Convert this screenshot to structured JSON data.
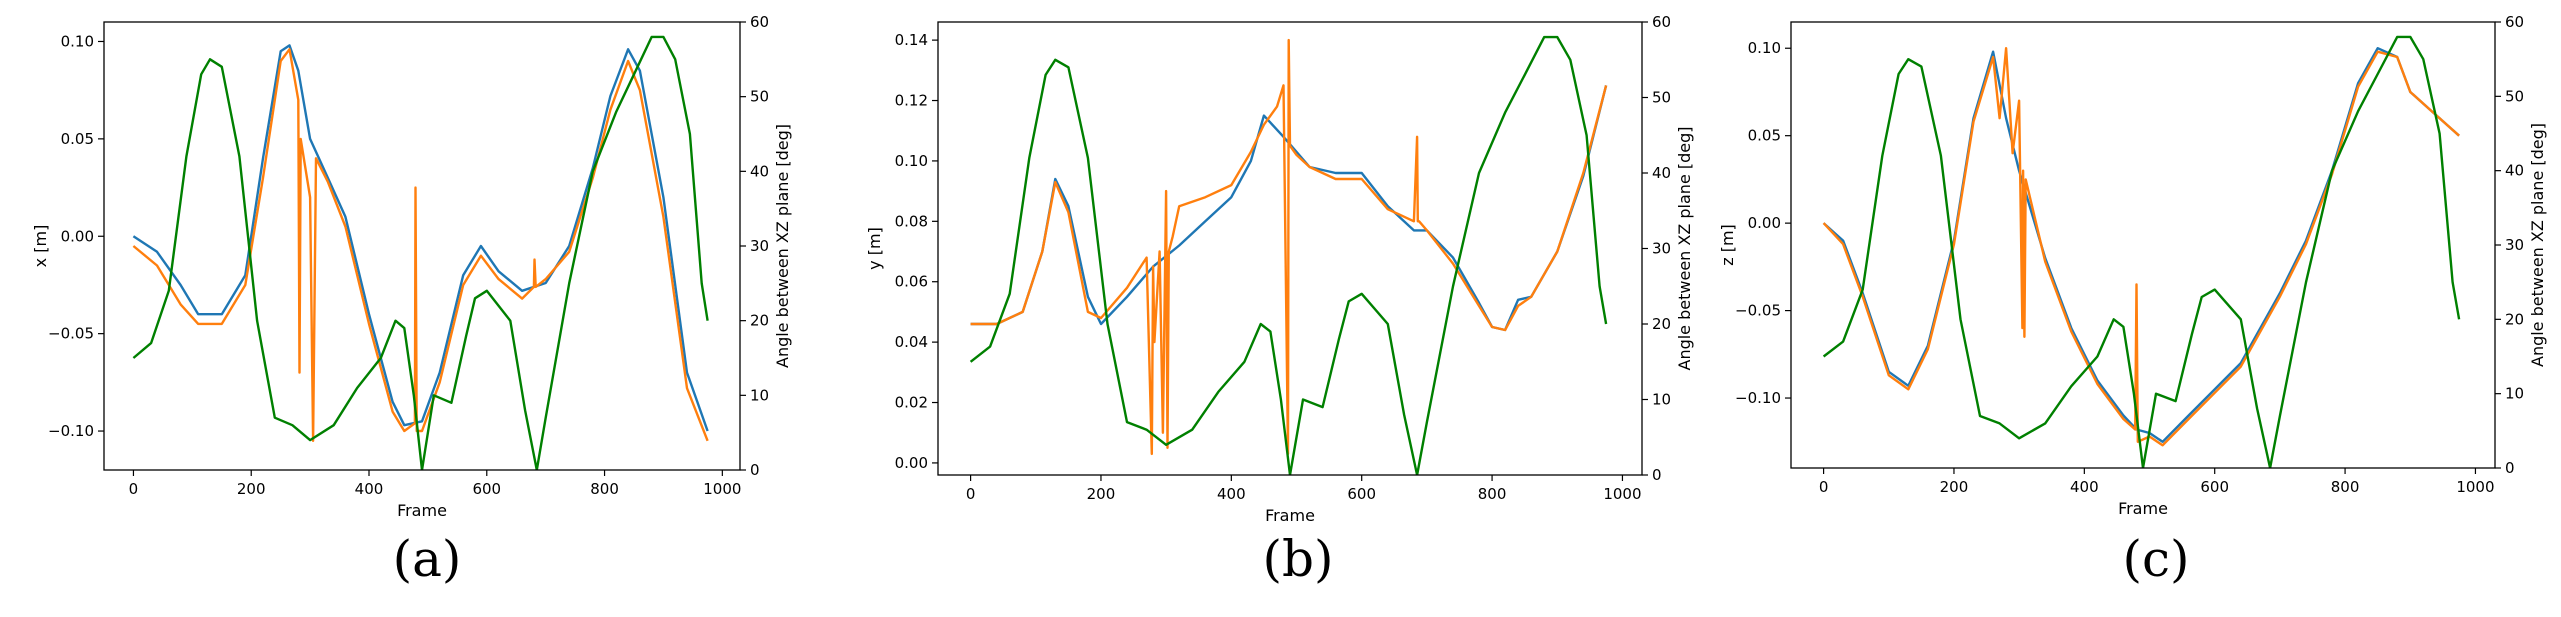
{
  "figure": {
    "panels": [
      {
        "caption": "(a)",
        "xlabel": "Frame",
        "ylabel": "x [m]",
        "y2label": "Angle between XZ plane [deg]",
        "yticks": [
          "0.10",
          "0.05",
          "0.00",
          "−0.05",
          "−0.10"
        ],
        "xticks": [
          "0",
          "200",
          "400",
          "600",
          "800",
          "1000"
        ],
        "y2ticks": [
          "60",
          "50",
          "40",
          "30",
          "20",
          "10",
          "0"
        ]
      },
      {
        "caption": "(b)",
        "xlabel": "Frame",
        "ylabel": "y [m]",
        "y2label": "Angle between XZ plane [deg]",
        "yticks": [
          "0.14",
          "0.12",
          "0.10",
          "0.08",
          "0.06",
          "0.04",
          "0.02",
          "0.00"
        ],
        "xticks": [
          "0",
          "200",
          "400",
          "600",
          "800",
          "1000"
        ],
        "y2ticks": [
          "60",
          "50",
          "40",
          "30",
          "20",
          "10",
          "0"
        ]
      },
      {
        "caption": "(c)",
        "xlabel": "Frame",
        "ylabel": "z [m]",
        "y2label": "Angle between XZ plane [deg]",
        "yticks": [
          "0.10",
          "0.05",
          "0.00",
          "−0.05",
          "−0.10"
        ],
        "xticks": [
          "0",
          "200",
          "400",
          "600",
          "800",
          "1000"
        ],
        "y2ticks": [
          "60",
          "50",
          "40",
          "30",
          "20",
          "10",
          "0"
        ]
      }
    ]
  },
  "chart_data": [
    {
      "type": "line",
      "xlabel": "Frame",
      "ylabel": "x [m]",
      "y2label": "Angle between XZ plane [deg]",
      "xlim": [
        -50,
        1030
      ],
      "ylim": [
        -0.12,
        0.11
      ],
      "y2lim": [
        0,
        60
      ],
      "xticks": [
        0,
        200,
        400,
        600,
        800,
        1000
      ],
      "yticks": [
        0.1,
        0.05,
        0.0,
        -0.05,
        -0.1
      ],
      "y2ticks": [
        60,
        50,
        40,
        30,
        20,
        10,
        0
      ],
      "series": [
        {
          "color": "#1f77b4",
          "axis": "left",
          "x": [
            0,
            40,
            80,
            110,
            150,
            190,
            220,
            250,
            265,
            280,
            300,
            330,
            360,
            400,
            440,
            460,
            490,
            520,
            560,
            590,
            620,
            660,
            700,
            740,
            780,
            810,
            840,
            860,
            900,
            940,
            975
          ],
          "y": [
            0.0,
            -0.008,
            -0.025,
            -0.04,
            -0.04,
            -0.02,
            0.04,
            0.095,
            0.098,
            0.085,
            0.05,
            0.03,
            0.01,
            -0.04,
            -0.085,
            -0.097,
            -0.095,
            -0.07,
            -0.02,
            -0.005,
            -0.018,
            -0.028,
            -0.024,
            -0.005,
            0.035,
            0.072,
            0.096,
            0.085,
            0.02,
            -0.07,
            -0.1
          ]
        },
        {
          "color": "#ff7f0e",
          "axis": "left",
          "x": [
            0,
            40,
            80,
            110,
            150,
            190,
            220,
            250,
            265,
            280,
            282,
            284,
            300,
            305,
            310,
            330,
            360,
            400,
            440,
            460,
            478,
            479,
            481,
            490,
            520,
            560,
            590,
            620,
            660,
            680,
            681,
            683,
            700,
            740,
            780,
            810,
            840,
            860,
            900,
            940,
            975
          ],
          "y": [
            -0.005,
            -0.015,
            -0.035,
            -0.045,
            -0.045,
            -0.025,
            0.03,
            0.09,
            0.096,
            0.07,
            -0.07,
            0.05,
            0.02,
            -0.105,
            0.04,
            0.028,
            0.005,
            -0.045,
            -0.09,
            -0.1,
            -0.096,
            0.025,
            -0.1,
            -0.1,
            -0.075,
            -0.025,
            -0.01,
            -0.022,
            -0.032,
            -0.026,
            -0.012,
            -0.026,
            -0.022,
            -0.008,
            0.03,
            0.065,
            0.09,
            0.075,
            0.01,
            -0.078,
            -0.105
          ]
        },
        {
          "color": "#008000",
          "axis": "right",
          "x": [
            0,
            30,
            60,
            90,
            115,
            130,
            150,
            180,
            210,
            240,
            270,
            300,
            340,
            380,
            420,
            445,
            460,
            476,
            490,
            510,
            540,
            565,
            580,
            600,
            640,
            665,
            685,
            700,
            740,
            780,
            820,
            850,
            880,
            900,
            920,
            945,
            965,
            975
          ],
          "y": [
            15,
            17,
            24,
            42,
            53,
            55,
            54,
            42,
            20,
            7,
            6,
            4,
            6,
            11,
            15,
            20,
            19,
            10,
            0,
            10,
            9,
            18,
            23,
            24,
            20,
            8,
            0,
            7,
            25,
            40,
            48,
            53,
            58,
            58,
            55,
            45,
            25,
            20
          ]
        }
      ]
    },
    {
      "type": "line",
      "xlabel": "Frame",
      "ylabel": "y [m]",
      "y2label": "Angle between XZ plane [deg]",
      "xlim": [
        -50,
        1030
      ],
      "ylim": [
        -0.004,
        0.146
      ],
      "y2lim": [
        0,
        60
      ],
      "xticks": [
        0,
        200,
        400,
        600,
        800,
        1000
      ],
      "yticks": [
        0.14,
        0.12,
        0.1,
        0.08,
        0.06,
        0.04,
        0.02,
        0.0
      ],
      "y2ticks": [
        60,
        50,
        40,
        30,
        20,
        10,
        0
      ],
      "series": [
        {
          "color": "#1f77b4",
          "axis": "left",
          "x": [
            0,
            40,
            80,
            110,
            130,
            150,
            180,
            200,
            240,
            280,
            320,
            360,
            400,
            430,
            450,
            480,
            520,
            560,
            600,
            640,
            680,
            700,
            740,
            780,
            800,
            820,
            840,
            860,
            900,
            940,
            975
          ],
          "y": [
            0.046,
            0.046,
            0.05,
            0.07,
            0.094,
            0.085,
            0.055,
            0.046,
            0.055,
            0.065,
            0.072,
            0.08,
            0.088,
            0.1,
            0.115,
            0.108,
            0.098,
            0.096,
            0.096,
            0.085,
            0.077,
            0.077,
            0.068,
            0.053,
            0.045,
            0.044,
            0.054,
            0.055,
            0.07,
            0.095,
            0.125
          ]
        },
        {
          "color": "#ff7f0e",
          "axis": "left",
          "x": [
            0,
            40,
            80,
            110,
            130,
            150,
            180,
            200,
            240,
            270,
            278,
            280,
            282,
            290,
            295,
            300,
            302,
            304,
            310,
            320,
            360,
            400,
            430,
            450,
            470,
            480,
            487,
            488,
            490,
            500,
            520,
            560,
            600,
            640,
            680,
            685,
            686,
            688,
            700,
            740,
            780,
            800,
            820,
            840,
            860,
            900,
            940,
            975
          ],
          "y": [
            0.046,
            0.046,
            0.05,
            0.07,
            0.093,
            0.083,
            0.05,
            0.048,
            0.058,
            0.068,
            0.003,
            0.065,
            0.04,
            0.07,
            0.01,
            0.09,
            0.005,
            0.07,
            0.075,
            0.085,
            0.088,
            0.092,
            0.103,
            0.112,
            0.118,
            0.125,
            0.003,
            0.14,
            0.105,
            0.102,
            0.098,
            0.094,
            0.094,
            0.084,
            0.08,
            0.108,
            0.08,
            0.08,
            0.077,
            0.066,
            0.052,
            0.045,
            0.044,
            0.052,
            0.055,
            0.07,
            0.096,
            0.125
          ]
        },
        {
          "color": "#008000",
          "axis": "right",
          "x": [
            0,
            30,
            60,
            90,
            115,
            130,
            150,
            180,
            210,
            240,
            270,
            300,
            340,
            380,
            420,
            445,
            460,
            476,
            490,
            510,
            540,
            565,
            580,
            600,
            640,
            665,
            685,
            700,
            740,
            780,
            820,
            850,
            880,
            900,
            920,
            945,
            965,
            975
          ],
          "y": [
            15,
            17,
            24,
            42,
            53,
            55,
            54,
            42,
            20,
            7,
            6,
            4,
            6,
            11,
            15,
            20,
            19,
            10,
            0,
            10,
            9,
            18,
            23,
            24,
            20,
            8,
            0,
            7,
            25,
            40,
            48,
            53,
            58,
            58,
            55,
            45,
            25,
            20
          ]
        }
      ]
    },
    {
      "type": "line",
      "xlabel": "Frame",
      "ylabel": "z [m]",
      "y2label": "Angle between XZ plane [deg]",
      "xlim": [
        -50,
        1030
      ],
      "ylim": [
        -0.14,
        0.115
      ],
      "y2lim": [
        0,
        60
      ],
      "xticks": [
        0,
        200,
        400,
        600,
        800,
        1000
      ],
      "yticks": [
        0.1,
        0.05,
        0.0,
        -0.05,
        -0.1
      ],
      "y2ticks": [
        60,
        50,
        40,
        30,
        20,
        10,
        0
      ],
      "series": [
        {
          "color": "#1f77b4",
          "axis": "left",
          "x": [
            0,
            30,
            60,
            100,
            130,
            160,
            200,
            230,
            260,
            280,
            300,
            340,
            380,
            420,
            460,
            480,
            500,
            520,
            560,
            600,
            640,
            700,
            740,
            780,
            820,
            850,
            880,
            900,
            930,
            975
          ],
          "y": [
            0.0,
            -0.01,
            -0.04,
            -0.085,
            -0.093,
            -0.07,
            -0.01,
            0.06,
            0.098,
            0.06,
            0.03,
            -0.02,
            -0.06,
            -0.09,
            -0.11,
            -0.118,
            -0.12,
            -0.125,
            -0.11,
            -0.095,
            -0.08,
            -0.04,
            -0.01,
            0.03,
            0.08,
            0.1,
            0.095,
            0.075,
            0.065,
            0.05
          ]
        },
        {
          "color": "#ff7f0e",
          "axis": "left",
          "x": [
            0,
            30,
            60,
            100,
            130,
            160,
            200,
            230,
            260,
            270,
            280,
            290,
            300,
            305,
            306,
            308,
            310,
            340,
            380,
            420,
            460,
            478,
            480,
            482,
            500,
            520,
            560,
            600,
            640,
            700,
            740,
            780,
            820,
            850,
            880,
            900,
            930,
            975
          ],
          "y": [
            0.0,
            -0.012,
            -0.042,
            -0.087,
            -0.095,
            -0.072,
            -0.012,
            0.058,
            0.095,
            0.06,
            0.1,
            0.04,
            0.07,
            -0.06,
            0.03,
            -0.065,
            0.025,
            -0.022,
            -0.062,
            -0.092,
            -0.112,
            -0.118,
            -0.035,
            -0.125,
            -0.122,
            -0.127,
            -0.112,
            -0.097,
            -0.082,
            -0.042,
            -0.012,
            0.028,
            0.078,
            0.098,
            0.095,
            0.075,
            0.065,
            0.05
          ]
        },
        {
          "color": "#008000",
          "axis": "right",
          "x": [
            0,
            30,
            60,
            90,
            115,
            130,
            150,
            180,
            210,
            240,
            270,
            300,
            340,
            380,
            420,
            445,
            460,
            476,
            490,
            510,
            540,
            565,
            580,
            600,
            640,
            665,
            685,
            700,
            740,
            780,
            820,
            850,
            880,
            900,
            920,
            945,
            965,
            975
          ],
          "y": [
            15,
            17,
            24,
            42,
            53,
            55,
            54,
            42,
            20,
            7,
            6,
            4,
            6,
            11,
            15,
            20,
            19,
            10,
            0,
            10,
            9,
            18,
            23,
            24,
            20,
            8,
            0,
            7,
            25,
            40,
            48,
            53,
            58,
            58,
            55,
            45,
            25,
            20
          ]
        }
      ]
    }
  ]
}
